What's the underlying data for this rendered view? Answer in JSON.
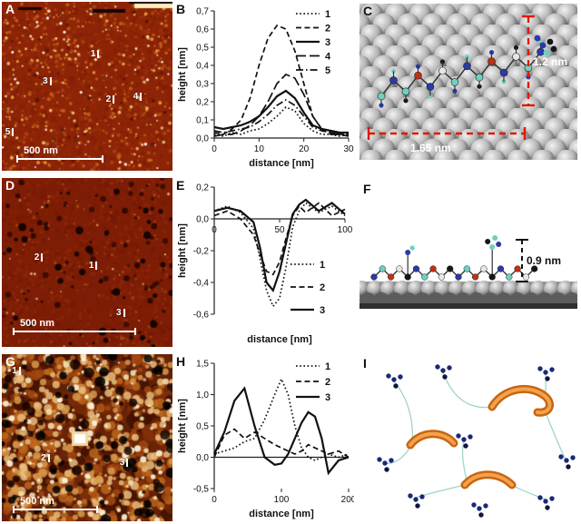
{
  "colors": {
    "afm_base_a": "#8d2407",
    "afm_base_d": "#7e1d05",
    "afm_base_g": "#622107",
    "annotation_red": "#e01800",
    "ribbon_orange": "#e07c1e",
    "line_black": "#111111"
  },
  "panels": {
    "a": {
      "letter": "A",
      "scale_label": "500 nm",
      "markers": [
        {
          "label": "1",
          "x": 52,
          "y": 28
        },
        {
          "label": "3",
          "x": 24,
          "y": 44
        },
        {
          "label": "2",
          "x": 61,
          "y": 55
        },
        {
          "label": "4",
          "x": 77,
          "y": 53
        },
        {
          "label": "5",
          "x": 2,
          "y": 74
        }
      ]
    },
    "b": {
      "letter": "B"
    },
    "c": {
      "letter": "C",
      "dim_height": "1.2 nm",
      "dim_width": "1.65 nm"
    },
    "d": {
      "letter": "D",
      "scale_label": "500 nm",
      "markers": [
        {
          "label": "2",
          "x": 19,
          "y": 44
        },
        {
          "label": "1",
          "x": 51,
          "y": 49
        },
        {
          "label": "3",
          "x": 67,
          "y": 77
        }
      ]
    },
    "e": {
      "letter": "E"
    },
    "f": {
      "letter": "F",
      "dim_height": "0.9 nm"
    },
    "g": {
      "letter": "G",
      "scale_label": "500 nm",
      "markers": [
        {
          "label": "1",
          "x": 6,
          "y": 7
        },
        {
          "label": "2",
          "x": 23,
          "y": 59
        },
        {
          "label": "3",
          "x": 69,
          "y": 62
        }
      ]
    },
    "h": {
      "letter": "H"
    },
    "i": {
      "letter": "I"
    }
  },
  "chart_data": [
    {
      "id": "chart-b",
      "panel": "B",
      "type": "line",
      "title": "",
      "xlabel": "distance [nm]",
      "ylabel": "height [nm]",
      "xlim": [
        0,
        30
      ],
      "ylim": [
        0,
        0.7
      ],
      "xticks": [
        0,
        10,
        20,
        30
      ],
      "ytick_step": 0.1,
      "ydecimals": 1,
      "decimal_comma": true,
      "axis_y": 0,
      "xlabel_pos": "bottom",
      "legend_pos": "top-right",
      "grid": false,
      "x": [
        0,
        2,
        4,
        6,
        8,
        10,
        12,
        14,
        16,
        18,
        20,
        22,
        24,
        26,
        28,
        30
      ],
      "series": [
        {
          "name": "1",
          "style": "dotted",
          "y": [
            0.02,
            0.01,
            0.03,
            0.02,
            0.04,
            0.05,
            0.08,
            0.12,
            0.17,
            0.15,
            0.08,
            0.04,
            0.02,
            0.02,
            0.01,
            0.02
          ]
        },
        {
          "name": "2",
          "style": "dashed",
          "y": [
            0.03,
            0.02,
            0.05,
            0.1,
            0.22,
            0.4,
            0.55,
            0.62,
            0.6,
            0.48,
            0.3,
            0.12,
            0.05,
            0.03,
            0.02,
            0.02
          ]
        },
        {
          "name": "3",
          "style": "solid",
          "y": [
            0.06,
            0.05,
            0.06,
            0.07,
            0.09,
            0.12,
            0.17,
            0.23,
            0.26,
            0.22,
            0.14,
            0.07,
            0.05,
            0.04,
            0.03,
            0.03
          ]
        },
        {
          "name": "4",
          "style": "longdash",
          "y": [
            0.01,
            0.02,
            0.02,
            0.04,
            0.07,
            0.12,
            0.2,
            0.3,
            0.35,
            0.33,
            0.24,
            0.12,
            0.05,
            0.02,
            0.02,
            0.01
          ]
        },
        {
          "name": "5",
          "style": "dashdot",
          "y": [
            0.04,
            0.03,
            0.04,
            0.05,
            0.06,
            0.09,
            0.13,
            0.18,
            0.21,
            0.18,
            0.12,
            0.06,
            0.04,
            0.03,
            0.02,
            0.02
          ]
        }
      ]
    },
    {
      "id": "chart-e",
      "panel": "E",
      "type": "line",
      "title": "",
      "xlabel": "distance [nm]",
      "ylabel": "height [nm]",
      "xlim": [
        0,
        100
      ],
      "ylim": [
        -0.6,
        0.2
      ],
      "xticks": [
        0,
        50,
        100
      ],
      "ytick_step": 0.2,
      "ydecimals": 1,
      "decimal_comma": true,
      "axis_y": 0,
      "xlabel_pos": "axis",
      "legend_pos": "mid-right",
      "grid": false,
      "x": [
        0,
        10,
        20,
        30,
        35,
        40,
        45,
        50,
        55,
        60,
        65,
        70,
        80,
        90,
        100
      ],
      "series": [
        {
          "name": "1",
          "style": "dotted",
          "y": [
            0.05,
            0.08,
            0.04,
            -0.06,
            -0.25,
            -0.45,
            -0.55,
            -0.5,
            -0.3,
            -0.05,
            0.05,
            0.1,
            0.04,
            0.08,
            0.02
          ]
        },
        {
          "name": "2",
          "style": "dashed",
          "y": [
            0.02,
            0.05,
            0.0,
            -0.1,
            -0.22,
            -0.33,
            -0.35,
            -0.27,
            -0.12,
            0.02,
            0.08,
            0.04,
            0.1,
            0.02,
            0.06
          ]
        },
        {
          "name": "3",
          "style": "solid",
          "y": [
            0.05,
            0.07,
            0.05,
            -0.02,
            -0.18,
            -0.4,
            -0.45,
            -0.33,
            -0.15,
            0.03,
            0.09,
            0.12,
            0.05,
            0.1,
            0.03
          ]
        }
      ]
    },
    {
      "id": "chart-h",
      "panel": "H",
      "type": "line",
      "title": "",
      "xlabel": "distance [nm]",
      "ylabel": "height [nm]",
      "xlim": [
        0,
        200
      ],
      "ylim": [
        -0.5,
        1.5
      ],
      "xticks": [
        0,
        100,
        200
      ],
      "ytick_step": 0.5,
      "ydecimals": 1,
      "decimal_comma": true,
      "axis_y": 0,
      "xlabel_pos": "bottom",
      "legend_pos": "top-right",
      "grid": false,
      "x": [
        0,
        15,
        30,
        45,
        60,
        75,
        90,
        100,
        110,
        120,
        130,
        140,
        150,
        160,
        170,
        185,
        200
      ],
      "series": [
        {
          "name": "1",
          "style": "dotted",
          "y": [
            0.05,
            0.1,
            0.15,
            0.25,
            0.3,
            0.6,
            1.0,
            1.25,
            1.0,
            0.5,
            0.15,
            0.0,
            -0.05,
            0.0,
            0.05,
            0.0,
            0.05
          ]
        },
        {
          "name": "2",
          "style": "dashed",
          "y": [
            0.0,
            0.35,
            0.45,
            0.3,
            0.4,
            0.3,
            0.2,
            0.15,
            0.1,
            0.05,
            0.1,
            0.2,
            0.15,
            0.1,
            0.05,
            0.1,
            0.0
          ]
        },
        {
          "name": "3",
          "style": "solid",
          "y": [
            0.05,
            0.4,
            0.9,
            1.1,
            0.5,
            0.0,
            -0.12,
            -0.1,
            0.05,
            0.3,
            0.55,
            0.72,
            0.65,
            0.3,
            -0.25,
            -0.05,
            0.0
          ]
        }
      ]
    }
  ]
}
